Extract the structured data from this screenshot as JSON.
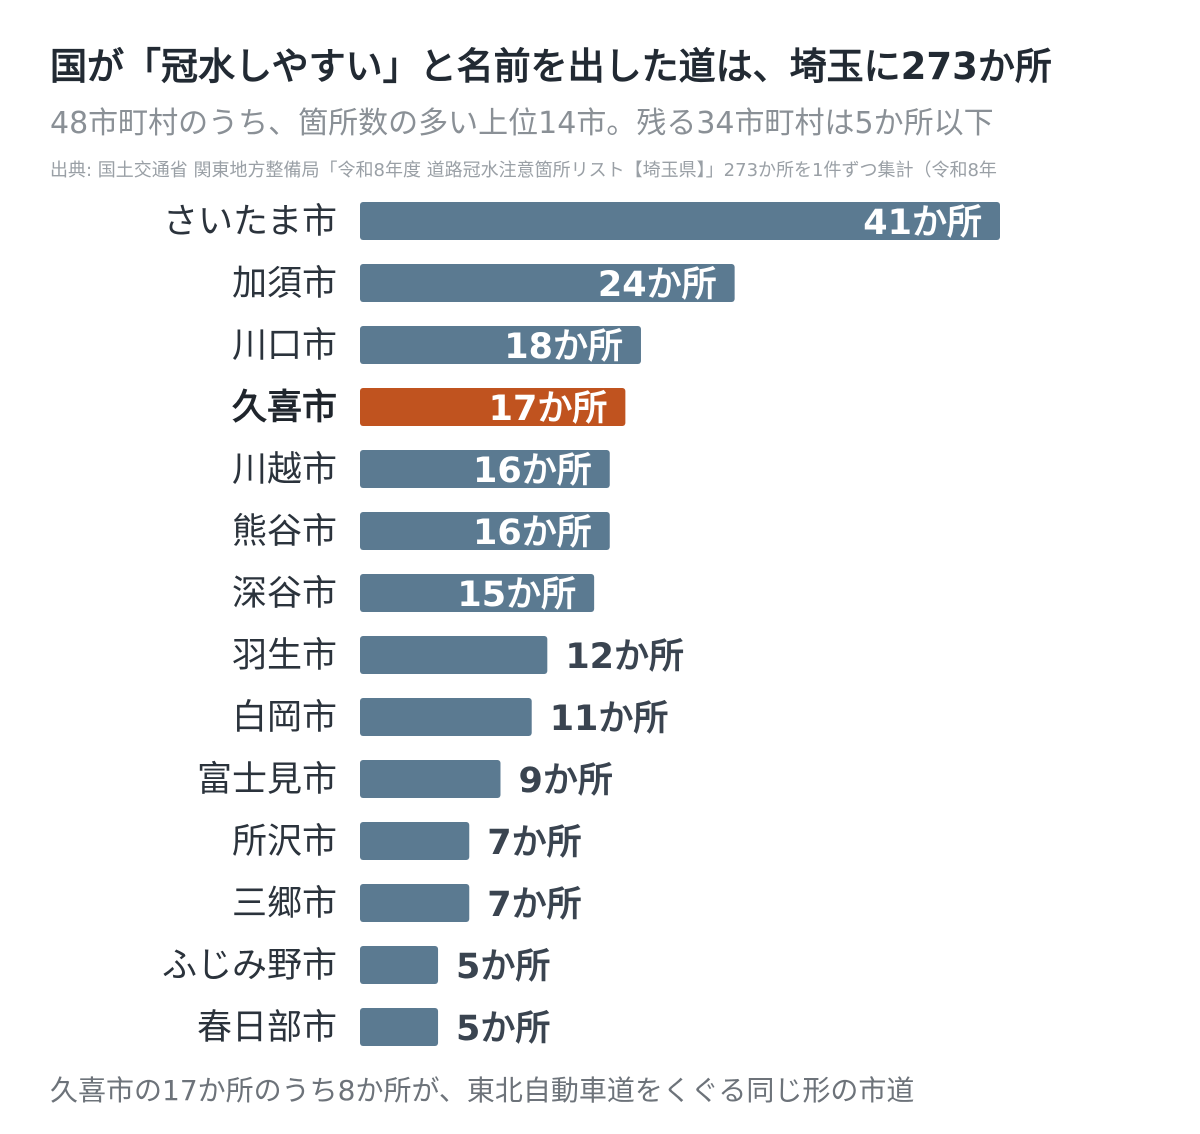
{
  "header": {
    "title": "国が「冠水しやすい」と名前を出した道は、埼玉に273か所",
    "subtitle": "48市町村のうち、箇所数の多い上位14市。残る34市町村は5か所以下",
    "source": "出典: 国土交通省 関東地方整備局「令和8年度 道路冠水注意箇所リスト【埼玉県】」273か所を1件ずつ集計（令和8年"
  },
  "note": "久喜市の17か所のうち8か所が、東北自動車道をくぐる同じ形の市道",
  "colors": {
    "bar": "#5b7a91",
    "highlight": "#c0531f"
  },
  "chart_data": {
    "type": "bar",
    "orientation": "horizontal",
    "categories": [
      "さいたま市",
      "加須市",
      "川口市",
      "久喜市",
      "川越市",
      "熊谷市",
      "深谷市",
      "羽生市",
      "白岡市",
      "富士見市",
      "所沢市",
      "三郷市",
      "ふじみ野市",
      "春日部市"
    ],
    "values": [
      41,
      24,
      18,
      17,
      16,
      16,
      15,
      12,
      11,
      9,
      7,
      7,
      5,
      5
    ],
    "value_labels": [
      "41か所",
      "24か所",
      "18か所",
      "17か所",
      "16か所",
      "16か所",
      "15か所",
      "12か所",
      "11か所",
      "9か所",
      "7か所",
      "7か所",
      "5か所",
      "5か所"
    ],
    "highlight": "久喜市",
    "xlim": [
      0,
      41
    ],
    "grid": false,
    "legend": "none"
  }
}
